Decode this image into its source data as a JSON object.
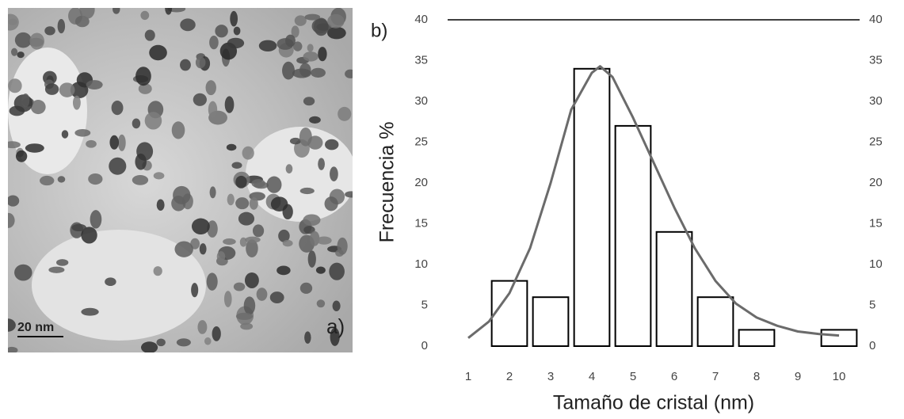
{
  "panel_a": {
    "scale_label": "20 nm",
    "label": "a)"
  },
  "chart_data": {
    "type": "bar",
    "panel_label": "b)",
    "x_label": "Tamaño de cristal (nm)",
    "y_label": "Frecuencia %",
    "categories": [
      "1",
      "2",
      "3",
      "4",
      "5",
      "6",
      "7",
      "8",
      "9",
      "10"
    ],
    "series": [
      {
        "type": "bar",
        "color": "#ffffff",
        "edgecolor": "#000000",
        "values": [
          0,
          8,
          6,
          34,
          27,
          14,
          6,
          2,
          0,
          2
        ]
      },
      {
        "type": "line",
        "color": "#6b6b6b",
        "x": [
          1,
          1.5,
          2,
          2.5,
          3,
          3.5,
          4,
          4.2,
          4.5,
          5,
          5.5,
          6,
          6.5,
          7,
          7.5,
          8,
          8.5,
          9,
          9.5,
          10
        ],
        "values": [
          1,
          3,
          6.5,
          12,
          20,
          29,
          33.5,
          34.3,
          33,
          28,
          22.5,
          17,
          12,
          8,
          5.2,
          3.5,
          2.5,
          1.8,
          1.5,
          1.3
        ]
      }
    ],
    "ylim": [
      0,
      40
    ],
    "yticks": [
      0,
      5,
      10,
      15,
      20,
      25,
      30,
      35,
      40
    ],
    "y2lim": [
      0,
      40
    ],
    "y2ticks": [
      0,
      5,
      10,
      15,
      20,
      25,
      30,
      35,
      40
    ],
    "grid": false
  }
}
